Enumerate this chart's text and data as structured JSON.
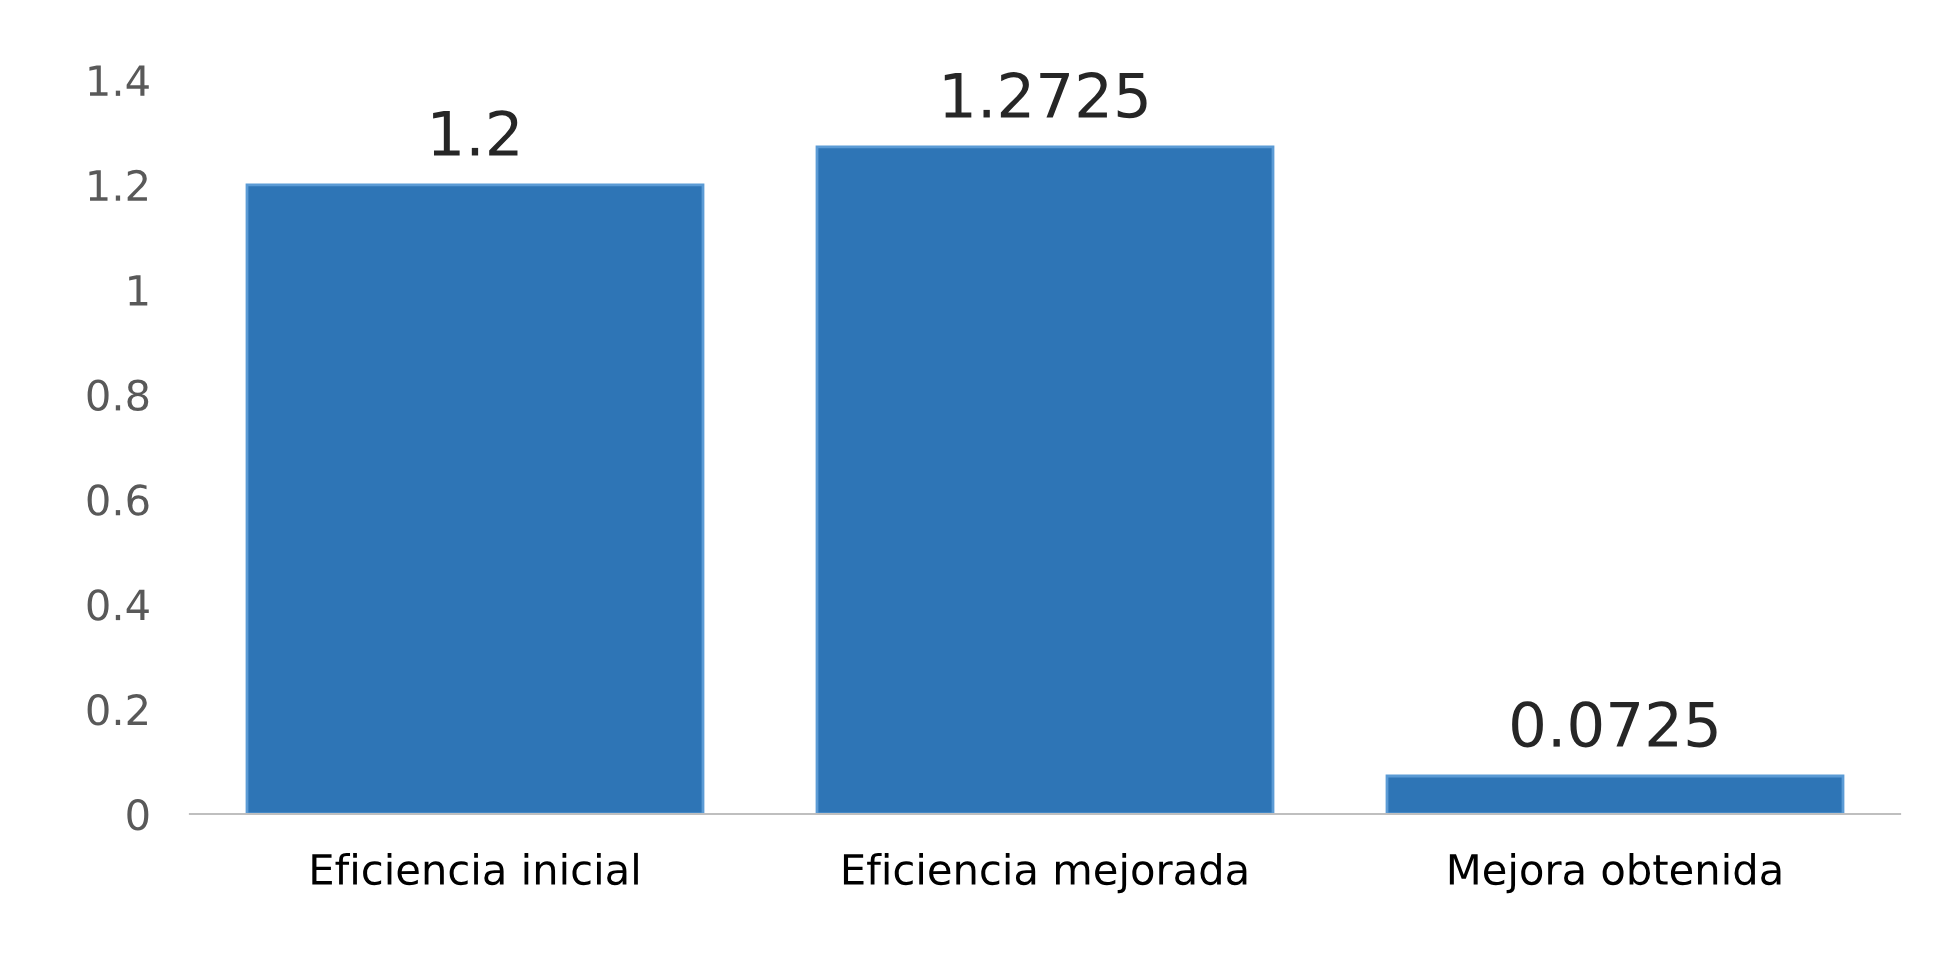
{
  "chart_data": {
    "type": "bar",
    "categories": [
      "Eficiencia inicial",
      "Eficiencia mejorada",
      "Mejora obtenida"
    ],
    "values": [
      1.2,
      1.2725,
      0.0725
    ],
    "color": "#2e75b6",
    "ylim": [
      0,
      1.4
    ],
    "yticks": [
      0,
      0.2,
      0.4,
      0.6,
      0.8,
      1,
      1.2,
      1.4
    ],
    "data_labels": true,
    "grid": false,
    "legend": false
  }
}
